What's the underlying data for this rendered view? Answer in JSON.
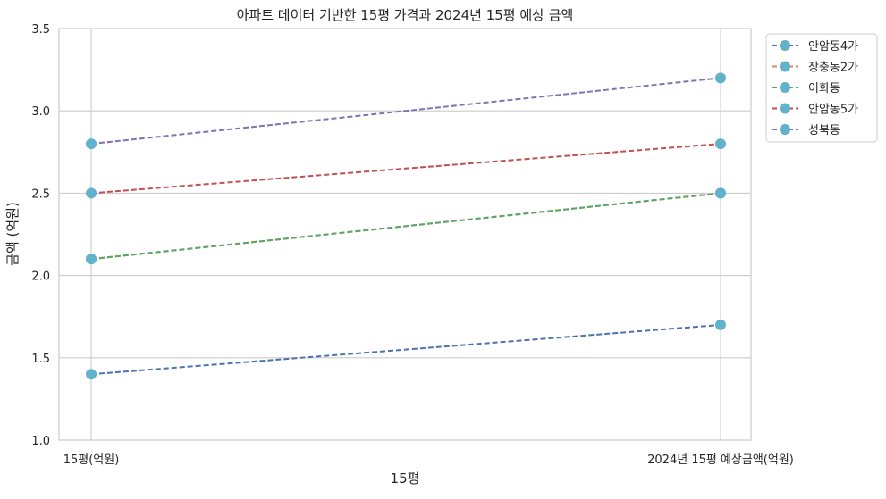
{
  "chart_data": {
    "type": "line",
    "title": "아파트 데이터 기반한 15평 가격과 2024년 15평 예상 금액",
    "xlabel": "15평",
    "ylabel": "금액 (억원)",
    "categories": [
      "15평(억원)",
      "2024년 15평 예상금액(억원)"
    ],
    "ylim": [
      1.0,
      3.5
    ],
    "yticks": [
      "1.0",
      "1.5",
      "2.0",
      "2.5",
      "3.0",
      "3.5"
    ],
    "grid": true,
    "legend_position": "outside-top-right",
    "marker_color": "#62b2cb",
    "series": [
      {
        "name": "안암동4가",
        "values": [
          1.4,
          1.7
        ],
        "color": "#4c72b0"
      },
      {
        "name": "장충동2가",
        "values": [
          2.1,
          2.5
        ],
        "color": "#dd8452"
      },
      {
        "name": "이화동",
        "values": [
          2.1,
          2.5
        ],
        "color": "#55a868"
      },
      {
        "name": "안암동5가",
        "values": [
          2.5,
          2.8
        ],
        "color": "#c44e52"
      },
      {
        "name": "성북동",
        "values": [
          2.8,
          3.2
        ],
        "color": "#8172b3"
      }
    ]
  }
}
